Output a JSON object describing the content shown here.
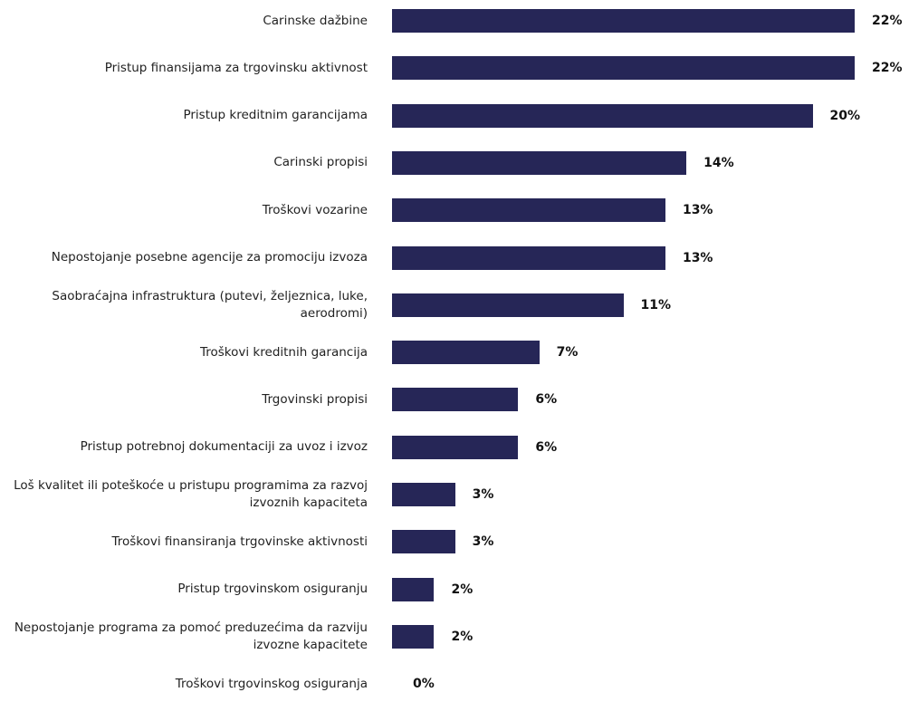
{
  "colors": {
    "bar": "#262657"
  },
  "chart_data": {
    "type": "bar",
    "orientation": "horizontal",
    "categories": [
      "Carinske dažbine",
      "Pristup finansijama za trgovinsku aktivnost",
      "Pristup kreditnim garancijama",
      "Carinski propisi",
      "Troškovi vozarine",
      "Nepostojanje posebne agencije za promociju izvoza",
      "Saobraćajna infrastruktura (putevi, željeznica, luke, aerodromi)",
      "Troškovi kreditnih garancija",
      "Trgovinski propisi",
      "Pristup potrebnoj dokumentaciji za uvoz i izvoz",
      "Loš kvalitet ili poteškoće u pristupu programima za razvoj izvoznih kapaciteta",
      "Troškovi finansiranja trgovinske aktivnosti",
      "Pristup trgovinskom osiguranju",
      "Nepostojanje programa za pomoć preduzećima da razviju izvozne kapacitete",
      "Troškovi trgovinskog osiguranja"
    ],
    "values": [
      22,
      22,
      20,
      14,
      13,
      13,
      11,
      7,
      6,
      6,
      3,
      3,
      2,
      2,
      0
    ],
    "value_labels": [
      "22%",
      "22%",
      "20%",
      "14%",
      "13%",
      "13%",
      "11%",
      "7%",
      "6%",
      "6%",
      "3%",
      "3%",
      "2%",
      "2%",
      "0%"
    ],
    "xlim": [
      0,
      22
    ],
    "grid": false,
    "legend": "none"
  }
}
